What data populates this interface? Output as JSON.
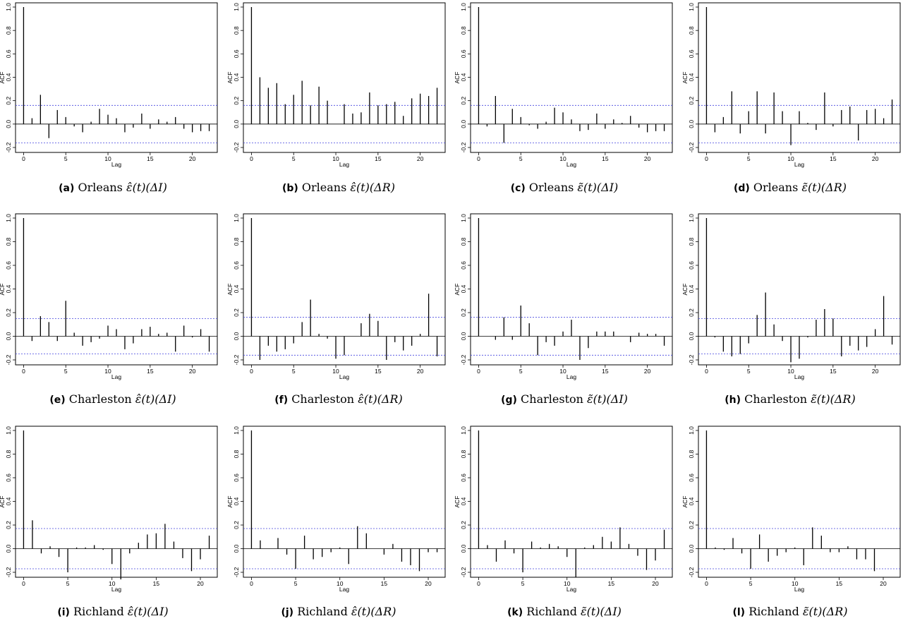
{
  "figure": {
    "ylabel": "ACF",
    "xlabel": "Lag",
    "line_color": "#000000",
    "ci_color": "#4444dd"
  },
  "captions": [
    {
      "letter": "(a)",
      "county": "Orleans",
      "math": "ε̂(t)(ΔI)"
    },
    {
      "letter": "(b)",
      "county": "Orleans",
      "math": "ε̂(t)(ΔR)"
    },
    {
      "letter": "(c)",
      "county": "Orleans",
      "math": "ε̃(t)(ΔI)"
    },
    {
      "letter": "(d)",
      "county": "Orleans",
      "math": "ε̃(t)(ΔR)"
    },
    {
      "letter": "(e)",
      "county": "Charleston",
      "math": "ε̂(t)(ΔI)"
    },
    {
      "letter": "(f)",
      "county": "Charleston",
      "math": "ε̂(t)(ΔR)"
    },
    {
      "letter": "(g)",
      "county": "Charleston",
      "math": "ε̃(t)(ΔI)"
    },
    {
      "letter": "(h)",
      "county": "Charleston",
      "math": "ε̃(t)(ΔR)"
    },
    {
      "letter": "(i)",
      "county": "Richland",
      "math": "ε̂(t)(ΔI)"
    },
    {
      "letter": "(j)",
      "county": "Richland",
      "math": "ε̂(t)(ΔR)"
    },
    {
      "letter": "(k)",
      "county": "Richland",
      "math": "ε̃(t)(ΔI)"
    },
    {
      "letter": "(l)",
      "county": "Richland",
      "math": "ε̃(t)(ΔR)"
    }
  ],
  "chart_data": [
    {
      "type": "bar",
      "xlabel": "Lag",
      "ylabel": "ACF",
      "ylim": [
        -0.2,
        1.0
      ],
      "xlim": [
        0,
        22
      ],
      "xticks": [
        0,
        5,
        10,
        15,
        20
      ],
      "yticks": [
        -0.2,
        0.0,
        0.2,
        0.4,
        0.6,
        0.8,
        1.0
      ],
      "ci": 0.16,
      "lags": [
        0,
        1,
        2,
        3,
        4,
        5,
        6,
        7,
        8,
        9,
        10,
        11,
        12,
        13,
        14,
        15,
        16,
        17,
        18,
        19,
        20,
        21,
        22
      ],
      "values": [
        1.0,
        0.05,
        0.25,
        -0.12,
        0.12,
        0.06,
        -0.02,
        -0.07,
        0.02,
        0.13,
        0.08,
        0.05,
        -0.07,
        -0.03,
        0.09,
        -0.04,
        0.04,
        0.02,
        0.06,
        -0.04,
        -0.07,
        -0.06,
        -0.06
      ]
    },
    {
      "type": "bar",
      "xlabel": "Lag",
      "ylabel": "ACF",
      "ylim": [
        -0.2,
        1.0
      ],
      "xlim": [
        0,
        22
      ],
      "xticks": [
        0,
        5,
        10,
        15,
        20
      ],
      "yticks": [
        -0.2,
        0.0,
        0.2,
        0.4,
        0.6,
        0.8,
        1.0
      ],
      "ci": 0.16,
      "lags": [
        0,
        1,
        2,
        3,
        4,
        5,
        6,
        7,
        8,
        9,
        10,
        11,
        12,
        13,
        14,
        15,
        16,
        17,
        18,
        19,
        20,
        21,
        22
      ],
      "values": [
        1.0,
        0.4,
        0.31,
        0.35,
        0.17,
        0.25,
        0.37,
        0.16,
        0.32,
        0.2,
        0.0,
        0.17,
        0.09,
        0.1,
        0.27,
        0.16,
        0.17,
        0.19,
        0.07,
        0.22,
        0.26,
        0.24,
        0.31
      ]
    },
    {
      "type": "bar",
      "xlabel": "Lag",
      "ylabel": "ACF",
      "ylim": [
        -0.2,
        1.0
      ],
      "xlim": [
        0,
        22
      ],
      "xticks": [
        0,
        5,
        10,
        15,
        20
      ],
      "yticks": [
        -0.2,
        0.0,
        0.2,
        0.4,
        0.6,
        0.8,
        1.0
      ],
      "ci": 0.16,
      "lags": [
        0,
        1,
        2,
        3,
        4,
        5,
        6,
        7,
        8,
        9,
        10,
        11,
        12,
        13,
        14,
        15,
        16,
        17,
        18,
        19,
        20,
        21,
        22
      ],
      "values": [
        1.0,
        -0.02,
        0.24,
        -0.16,
        0.13,
        0.06,
        -0.01,
        -0.04,
        0.02,
        0.14,
        0.1,
        0.04,
        -0.06,
        -0.05,
        0.09,
        -0.04,
        0.04,
        0.01,
        0.07,
        -0.03,
        -0.07,
        -0.06,
        -0.06
      ]
    },
    {
      "type": "bar",
      "xlabel": "Lag",
      "ylabel": "ACF",
      "ylim": [
        -0.2,
        1.0
      ],
      "xlim": [
        0,
        22
      ],
      "xticks": [
        0,
        5,
        10,
        15,
        20
      ],
      "yticks": [
        -0.2,
        0.0,
        0.2,
        0.4,
        0.6,
        0.8,
        1.0
      ],
      "ci": 0.16,
      "lags": [
        0,
        1,
        2,
        3,
        4,
        5,
        6,
        7,
        8,
        9,
        10,
        11,
        12,
        13,
        14,
        15,
        16,
        17,
        18,
        19,
        20,
        21,
        22
      ],
      "values": [
        1.0,
        -0.07,
        0.06,
        0.28,
        -0.08,
        0.11,
        0.28,
        -0.08,
        0.27,
        0.11,
        -0.18,
        0.11,
        0.01,
        -0.05,
        0.27,
        -0.02,
        0.12,
        0.15,
        -0.14,
        0.12,
        0.13,
        0.05,
        0.21
      ]
    },
    {
      "type": "bar",
      "xlabel": "Lag",
      "ylabel": "ACF",
      "ylim": [
        -0.2,
        1.0
      ],
      "xlim": [
        0,
        22
      ],
      "xticks": [
        0,
        5,
        10,
        15,
        20
      ],
      "yticks": [
        -0.2,
        0.0,
        0.2,
        0.4,
        0.6,
        0.8,
        1.0
      ],
      "ci": 0.15,
      "lags": [
        0,
        1,
        2,
        3,
        4,
        5,
        6,
        7,
        8,
        9,
        10,
        11,
        12,
        13,
        14,
        15,
        16,
        17,
        18,
        19,
        20,
        21,
        22
      ],
      "values": [
        1.0,
        -0.04,
        0.17,
        0.12,
        -0.04,
        0.3,
        0.03,
        -0.08,
        -0.05,
        -0.02,
        0.09,
        0.06,
        -0.11,
        -0.06,
        0.06,
        0.08,
        0.02,
        0.03,
        -0.13,
        0.09,
        -0.01,
        0.06,
        -0.13
      ]
    },
    {
      "type": "bar",
      "xlabel": "Lag",
      "ylabel": "ACF",
      "ylim": [
        -0.2,
        1.0
      ],
      "xlim": [
        0,
        22
      ],
      "xticks": [
        0,
        5,
        10,
        15,
        20
      ],
      "yticks": [
        -0.2,
        0.0,
        0.2,
        0.4,
        0.6,
        0.8,
        1.0
      ],
      "ci": 0.16,
      "lags": [
        0,
        1,
        2,
        3,
        4,
        5,
        6,
        7,
        8,
        9,
        10,
        11,
        12,
        13,
        14,
        15,
        16,
        17,
        18,
        19,
        20,
        21,
        22
      ],
      "values": [
        1.0,
        -0.2,
        -0.08,
        -0.13,
        -0.11,
        -0.06,
        0.12,
        0.31,
        0.02,
        -0.02,
        -0.19,
        -0.16,
        0.0,
        0.11,
        0.19,
        0.13,
        -0.2,
        -0.05,
        -0.12,
        -0.08,
        0.02,
        0.36,
        -0.17
      ]
    },
    {
      "type": "bar",
      "xlabel": "Lag",
      "ylabel": "ACF",
      "ylim": [
        -0.2,
        1.0
      ],
      "xlim": [
        0,
        22
      ],
      "xticks": [
        0,
        5,
        10,
        15,
        20
      ],
      "yticks": [
        -0.2,
        0.0,
        0.2,
        0.4,
        0.6,
        0.8,
        1.0
      ],
      "ci": 0.16,
      "lags": [
        0,
        1,
        2,
        3,
        4,
        5,
        6,
        7,
        8,
        9,
        10,
        11,
        12,
        13,
        14,
        15,
        16,
        17,
        18,
        19,
        20,
        21,
        22
      ],
      "values": [
        1.0,
        0.0,
        -0.03,
        0.16,
        -0.03,
        0.26,
        0.11,
        -0.16,
        -0.05,
        -0.08,
        0.04,
        0.14,
        -0.2,
        -0.1,
        0.04,
        0.04,
        0.04,
        0.0,
        -0.05,
        0.03,
        0.02,
        0.02,
        -0.08
      ]
    },
    {
      "type": "bar",
      "xlabel": "Lag",
      "ylabel": "ACF",
      "ylim": [
        -0.2,
        1.0
      ],
      "xlim": [
        0,
        22
      ],
      "xticks": [
        0,
        5,
        10,
        15,
        20
      ],
      "yticks": [
        -0.2,
        0.0,
        0.2,
        0.4,
        0.6,
        0.8,
        1.0
      ],
      "ci": 0.15,
      "lags": [
        0,
        1,
        2,
        3,
        4,
        5,
        6,
        7,
        8,
        9,
        10,
        11,
        12,
        13,
        14,
        15,
        16,
        17,
        18,
        19,
        20,
        21,
        22
      ],
      "values": [
        1.0,
        -0.01,
        -0.13,
        -0.17,
        -0.15,
        -0.06,
        0.18,
        0.37,
        0.1,
        -0.04,
        -0.22,
        -0.19,
        -0.01,
        0.14,
        0.23,
        0.15,
        -0.17,
        -0.08,
        -0.12,
        -0.09,
        0.06,
        0.34,
        -0.07
      ]
    },
    {
      "type": "bar",
      "xlabel": "Lag",
      "ylabel": "ACF",
      "ylim": [
        -0.2,
        1.0
      ],
      "xlim": [
        0,
        21
      ],
      "xticks": [
        0,
        5,
        10,
        15,
        20
      ],
      "yticks": [
        -0.2,
        0.0,
        0.2,
        0.4,
        0.6,
        0.8,
        1.0
      ],
      "ci": 0.17,
      "lags": [
        0,
        1,
        2,
        3,
        4,
        5,
        6,
        7,
        8,
        9,
        10,
        11,
        12,
        13,
        14,
        15,
        16,
        17,
        18,
        19,
        20,
        21
      ],
      "values": [
        1.0,
        0.24,
        -0.04,
        0.02,
        -0.07,
        -0.2,
        0.01,
        0.01,
        0.03,
        -0.01,
        -0.13,
        -0.26,
        -0.04,
        0.05,
        0.12,
        0.13,
        0.21,
        0.06,
        -0.08,
        -0.19,
        -0.09,
        0.11
      ]
    },
    {
      "type": "bar",
      "xlabel": "Lag",
      "ylabel": "ACF",
      "ylim": [
        -0.2,
        1.0
      ],
      "xlim": [
        0,
        21
      ],
      "xticks": [
        0,
        5,
        10,
        15,
        20
      ],
      "yticks": [
        -0.2,
        0.0,
        0.2,
        0.4,
        0.6,
        0.8,
        1.0
      ],
      "ci": 0.17,
      "lags": [
        0,
        1,
        2,
        3,
        4,
        5,
        6,
        7,
        8,
        9,
        10,
        11,
        12,
        13,
        14,
        15,
        16,
        17,
        18,
        19,
        20,
        21
      ],
      "values": [
        1.0,
        0.07,
        0.0,
        0.09,
        -0.05,
        -0.17,
        0.11,
        -0.09,
        -0.07,
        -0.03,
        0.01,
        -0.13,
        0.19,
        0.13,
        0.0,
        -0.05,
        0.04,
        -0.11,
        -0.14,
        -0.19,
        -0.03,
        -0.03
      ]
    },
    {
      "type": "bar",
      "xlabel": "Lag",
      "ylabel": "ACF",
      "ylim": [
        -0.2,
        1.0
      ],
      "xlim": [
        0,
        21
      ],
      "xticks": [
        0,
        5,
        10,
        15,
        20
      ],
      "yticks": [
        -0.2,
        0.0,
        0.2,
        0.4,
        0.6,
        0.8,
        1.0
      ],
      "ci": 0.17,
      "lags": [
        0,
        1,
        2,
        3,
        4,
        5,
        6,
        7,
        8,
        9,
        10,
        11,
        12,
        13,
        14,
        15,
        16,
        17,
        18,
        19,
        20,
        21
      ],
      "values": [
        1.0,
        0.03,
        -0.11,
        0.07,
        -0.04,
        -0.2,
        0.06,
        0.01,
        0.04,
        0.02,
        -0.07,
        -0.24,
        0.01,
        0.03,
        0.1,
        0.06,
        0.18,
        0.04,
        -0.06,
        -0.18,
        -0.1,
        0.16
      ]
    },
    {
      "type": "bar",
      "xlabel": "Lag",
      "ylabel": "ACF",
      "ylim": [
        -0.2,
        1.0
      ],
      "xlim": [
        0,
        21
      ],
      "xticks": [
        0,
        5,
        10,
        15,
        20
      ],
      "yticks": [
        -0.2,
        0.0,
        0.2,
        0.4,
        0.6,
        0.8,
        1.0
      ],
      "ci": 0.17,
      "lags": [
        0,
        1,
        2,
        3,
        4,
        5,
        6,
        7,
        8,
        9,
        10,
        11,
        12,
        13,
        14,
        15,
        16,
        17,
        18,
        19,
        20,
        21
      ],
      "values": [
        1.0,
        0.01,
        -0.01,
        0.09,
        -0.04,
        -0.17,
        0.12,
        -0.11,
        -0.06,
        -0.03,
        0.01,
        -0.14,
        0.18,
        0.11,
        -0.03,
        -0.03,
        0.02,
        -0.09,
        -0.09,
        -0.19,
        0.0,
        0.0
      ]
    }
  ]
}
